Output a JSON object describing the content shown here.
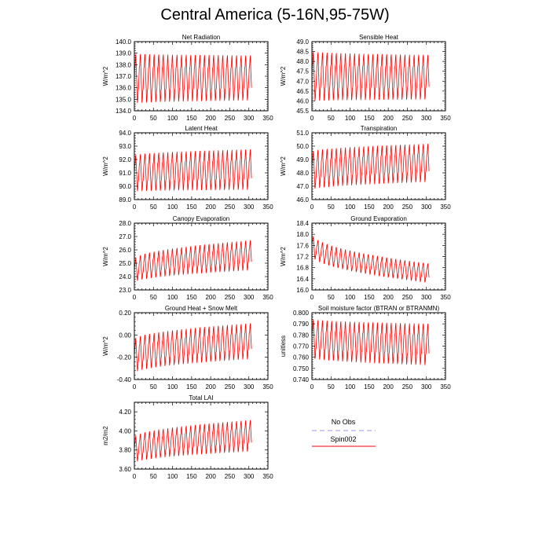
{
  "title": "Central America (5-16N,95-75W)",
  "legend": {
    "placement": "right of Total LAI panel",
    "entries": [
      {
        "name": "No Obs",
        "color": "#9999ee",
        "style": "dashed"
      },
      {
        "name": "Spin002",
        "color": "#ff0000",
        "style": "solid"
      }
    ]
  },
  "chart_data": [
    {
      "type": "line",
      "title": "Net Radiation",
      "ylabel": "W/m^2",
      "xlim": [
        0,
        350
      ],
      "ylim": [
        134.0,
        140.0
      ],
      "xticks": [
        "0",
        "50",
        "100",
        "150",
        "200",
        "250",
        "300",
        "350"
      ],
      "yticks": [
        "134.0",
        "135.0",
        "136.0",
        "137.0",
        "138.0",
        "139.0",
        "140.0"
      ],
      "series": [
        {
          "name": "Spin002",
          "color": "#ff0000",
          "months": 307,
          "period": 12,
          "start_low": 134.3,
          "start_high": 139.3,
          "end_low": 134.6,
          "end_high": 139.1
        }
      ]
    },
    {
      "type": "line",
      "title": "Sensible Heat",
      "ylabel": "W/m^2",
      "xlim": [
        0,
        350
      ],
      "ylim": [
        45.5,
        49.0
      ],
      "xticks": [
        "0",
        "50",
        "100",
        "150",
        "200",
        "250",
        "300",
        "350"
      ],
      "yticks": [
        "45.5",
        "46.0",
        "46.5",
        "47.0",
        "47.5",
        "48.0",
        "48.5",
        "49.0"
      ],
      "series": [
        {
          "name": "Spin002",
          "color": "#ff0000",
          "months": 307,
          "period": 12,
          "start_low": 45.8,
          "start_high": 48.7,
          "end_low": 45.9,
          "end_high": 48.5
        }
      ]
    },
    {
      "type": "line",
      "title": "Latent Heat",
      "ylabel": "W/m^2",
      "xlim": [
        0,
        350
      ],
      "ylim": [
        89.0,
        94.0
      ],
      "xticks": [
        "0",
        "50",
        "100",
        "150",
        "200",
        "250",
        "300",
        "350"
      ],
      "yticks": [
        "89.0",
        "90.0",
        "91.0",
        "92.0",
        "93.0",
        "94.0"
      ],
      "series": [
        {
          "name": "Spin002",
          "color": "#ff0000",
          "months": 307,
          "period": 12,
          "start_low": 89.4,
          "start_high": 92.5,
          "end_low": 89.5,
          "end_high": 93.0
        }
      ]
    },
    {
      "type": "line",
      "title": "Transpiration",
      "ylabel": "W/m^2",
      "xlim": [
        0,
        350
      ],
      "ylim": [
        46.0,
        51.0
      ],
      "xticks": [
        "0",
        "50",
        "100",
        "150",
        "200",
        "250",
        "300",
        "350"
      ],
      "yticks": [
        "46.0",
        "47.0",
        "48.0",
        "49.0",
        "50.0",
        "51.0"
      ],
      "series": [
        {
          "name": "Spin002",
          "color": "#ff0000",
          "months": 307,
          "period": 12,
          "start_low": 46.5,
          "start_high": 49.8,
          "end_low": 47.1,
          "end_high": 50.4
        }
      ]
    },
    {
      "type": "line",
      "title": "Canopy Evaporation",
      "ylabel": "W/m^2",
      "xlim": [
        0,
        350
      ],
      "ylim": [
        23.0,
        28.0
      ],
      "xticks": [
        "0",
        "50",
        "100",
        "150",
        "200",
        "250",
        "300",
        "350"
      ],
      "yticks": [
        "23.0",
        "24.0",
        "25.0",
        "26.0",
        "27.0",
        "28.0"
      ],
      "series": [
        {
          "name": "Spin002",
          "color": "#ff0000",
          "months": 307,
          "period": 12,
          "start_low": 23.4,
          "start_high": 25.4,
          "end_low": 24.3,
          "end_high": 26.9
        }
      ]
    },
    {
      "type": "line",
      "title": "Ground Evaporation",
      "ylabel": "W/m^2",
      "xlim": [
        0,
        350
      ],
      "ylim": [
        16.0,
        18.4
      ],
      "xticks": [
        "0",
        "50",
        "100",
        "150",
        "200",
        "250",
        "300",
        "350"
      ],
      "yticks": [
        "16.0",
        "16.4",
        "16.8",
        "17.2",
        "17.6",
        "18.0",
        "18.4"
      ],
      "series": [
        {
          "name": "Spin002",
          "color": "#ff0000",
          "months": 307,
          "period": 12,
          "start_low": 17.2,
          "start_high": 18.1,
          "end_low": 16.2,
          "end_high": 17.0
        }
      ]
    },
    {
      "type": "line",
      "title": "Ground Heat + Snow Melt",
      "ylabel": "W/m^2",
      "xlim": [
        0,
        350
      ],
      "ylim": [
        -0.4,
        0.2
      ],
      "xticks": [
        "0",
        "50",
        "100",
        "150",
        "200",
        "250",
        "300",
        "350"
      ],
      "yticks": [
        "-0.40",
        "-0.20",
        "0.00",
        "0.20"
      ],
      "series": [
        {
          "name": "Spin002",
          "color": "#ff0000",
          "months": 307,
          "period": 12,
          "start_low": -0.37,
          "start_high": -0.02,
          "end_low": -0.24,
          "end_high": 0.13
        }
      ]
    },
    {
      "type": "line",
      "title": "Soil moisture factor (BTRAN or BTRANMN)",
      "ylabel": "unitless",
      "xlim": [
        0,
        350
      ],
      "ylim": [
        0.74,
        0.8
      ],
      "xticks": [
        "0",
        "50",
        "100",
        "150",
        "200",
        "250",
        "300",
        "350"
      ],
      "yticks": [
        "0.740",
        "0.750",
        "0.760",
        "0.770",
        "0.780",
        "0.790",
        "0.800"
      ],
      "series": [
        {
          "name": "Spin002",
          "color": "#ff0000",
          "months": 307,
          "period": 12,
          "start_low": 0.757,
          "start_high": 0.797,
          "end_low": 0.75,
          "end_high": 0.793
        }
      ]
    },
    {
      "type": "line",
      "title": "Total LAI",
      "ylabel": "m2/m2",
      "xlim": [
        0,
        350
      ],
      "ylim": [
        3.6,
        4.3
      ],
      "xticks": [
        "0",
        "50",
        "100",
        "150",
        "200",
        "250",
        "300",
        "350"
      ],
      "yticks": [
        "3.60",
        "3.80",
        "4.00",
        "4.20"
      ],
      "series": [
        {
          "name": "Spin002",
          "color": "#ff0000",
          "months": 307,
          "period": 12,
          "start_low": 3.64,
          "start_high": 3.95,
          "end_low": 3.76,
          "end_high": 4.14
        }
      ]
    }
  ]
}
